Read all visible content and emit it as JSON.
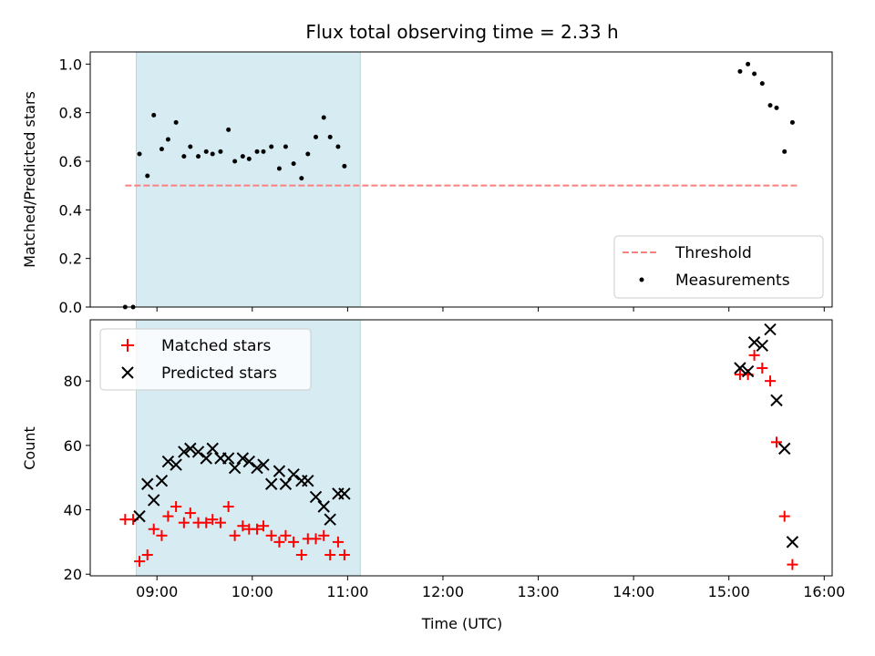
{
  "colors": {
    "shade": "#add8e6",
    "threshold": "#ff7f7f",
    "matched": "#ff0000",
    "predicted": "#000000",
    "measurement": "#000000"
  },
  "chart_data": [
    {
      "type": "scatter",
      "title": "Flux total observing time = 2.33 h",
      "xlabel": "",
      "ylabel": "Matched/Predicted stars",
      "xlim": [
        "08:18",
        "16:05"
      ],
      "ylim": [
        0,
        1.05
      ],
      "yticks": [
        0.0,
        0.2,
        0.4,
        0.6,
        0.8,
        1.0
      ],
      "ytick_labels": [
        "0.0",
        "0.2",
        "0.4",
        "0.6",
        "0.8",
        "1.0"
      ],
      "xticks": [
        "09:00",
        "10:00",
        "11:00",
        "12:00",
        "13:00",
        "14:00",
        "15:00",
        "16:00"
      ],
      "shaded_span": [
        "08:47",
        "11:08"
      ],
      "legend_position": "lower-right",
      "series": [
        {
          "name": "Threshold",
          "kind": "dashed-line",
          "points": [
            [
              "08:40",
              0.5
            ],
            [
              "15:44",
              0.5
            ]
          ]
        },
        {
          "name": "Measurements",
          "kind": "points",
          "points": [
            [
              "08:40",
              0.0
            ],
            [
              "08:45",
              0.0
            ],
            [
              "08:49",
              0.63
            ],
            [
              "08:54",
              0.54
            ],
            [
              "08:58",
              0.79
            ],
            [
              "09:03",
              0.65
            ],
            [
              "09:07",
              0.69
            ],
            [
              "09:12",
              0.76
            ],
            [
              "09:17",
              0.62
            ],
            [
              "09:21",
              0.66
            ],
            [
              "09:26",
              0.62
            ],
            [
              "09:31",
              0.64
            ],
            [
              "09:35",
              0.63
            ],
            [
              "09:40",
              0.64
            ],
            [
              "09:45",
              0.73
            ],
            [
              "09:49",
              0.6
            ],
            [
              "09:54",
              0.62
            ],
            [
              "09:58",
              0.61
            ],
            [
              "10:03",
              0.64
            ],
            [
              "10:07",
              0.64
            ],
            [
              "10:12",
              0.66
            ],
            [
              "10:17",
              0.57
            ],
            [
              "10:21",
              0.66
            ],
            [
              "10:26",
              0.59
            ],
            [
              "10:31",
              0.53
            ],
            [
              "10:35",
              0.63
            ],
            [
              "10:40",
              0.7
            ],
            [
              "10:45",
              0.78
            ],
            [
              "10:49",
              0.7
            ],
            [
              "10:54",
              0.66
            ],
            [
              "10:58",
              0.58
            ],
            [
              "15:07",
              0.97
            ],
            [
              "15:12",
              1.0
            ],
            [
              "15:16",
              0.96
            ],
            [
              "15:21",
              0.92
            ],
            [
              "15:26",
              0.83
            ],
            [
              "15:30",
              0.82
            ],
            [
              "15:35",
              0.64
            ],
            [
              "15:40",
              0.76
            ]
          ]
        }
      ]
    },
    {
      "type": "scatter",
      "title": "",
      "xlabel": "Time (UTC)",
      "ylabel": "Count",
      "xlim": [
        "08:18",
        "16:05"
      ],
      "ylim": [
        19.5,
        99
      ],
      "yticks": [
        20,
        40,
        60,
        80
      ],
      "ytick_labels": [
        "20",
        "40",
        "60",
        "80"
      ],
      "xticks": [
        "09:00",
        "10:00",
        "11:00",
        "12:00",
        "13:00",
        "14:00",
        "15:00",
        "16:00"
      ],
      "xtick_labels": [
        "09:00",
        "10:00",
        "11:00",
        "12:00",
        "13:00",
        "14:00",
        "15:00",
        "16:00"
      ],
      "shaded_span": [
        "08:47",
        "11:08"
      ],
      "legend_position": "upper-left",
      "series": [
        {
          "name": "Matched stars",
          "kind": "plus",
          "points": [
            [
              "08:40",
              37
            ],
            [
              "08:45",
              37
            ],
            [
              "08:49",
              24
            ],
            [
              "08:54",
              26
            ],
            [
              "08:58",
              34
            ],
            [
              "09:03",
              32
            ],
            [
              "09:07",
              38
            ],
            [
              "09:12",
              41
            ],
            [
              "09:17",
              36
            ],
            [
              "09:21",
              39
            ],
            [
              "09:26",
              36
            ],
            [
              "09:31",
              36
            ],
            [
              "09:35",
              37
            ],
            [
              "09:40",
              36
            ],
            [
              "09:45",
              41
            ],
            [
              "09:49",
              32
            ],
            [
              "09:54",
              35
            ],
            [
              "09:58",
              34
            ],
            [
              "10:03",
              34
            ],
            [
              "10:07",
              35
            ],
            [
              "10:12",
              32
            ],
            [
              "10:17",
              30
            ],
            [
              "10:21",
              32
            ],
            [
              "10:26",
              30
            ],
            [
              "10:31",
              26
            ],
            [
              "10:35",
              31
            ],
            [
              "10:40",
              31
            ],
            [
              "10:45",
              32
            ],
            [
              "10:49",
              26
            ],
            [
              "10:54",
              30
            ],
            [
              "10:58",
              26
            ],
            [
              "15:07",
              82
            ],
            [
              "15:12",
              82
            ],
            [
              "15:16",
              88
            ],
            [
              "15:21",
              84
            ],
            [
              "15:26",
              80
            ],
            [
              "15:30",
              61
            ],
            [
              "15:35",
              38
            ],
            [
              "15:40",
              23
            ]
          ]
        },
        {
          "name": "Predicted stars",
          "kind": "x",
          "points": [
            [
              "08:49",
              38
            ],
            [
              "08:54",
              48
            ],
            [
              "08:58",
              43
            ],
            [
              "09:03",
              49
            ],
            [
              "09:07",
              55
            ],
            [
              "09:12",
              54
            ],
            [
              "09:17",
              58
            ],
            [
              "09:21",
              59
            ],
            [
              "09:26",
              58
            ],
            [
              "09:31",
              56
            ],
            [
              "09:35",
              59
            ],
            [
              "09:40",
              56
            ],
            [
              "09:45",
              56
            ],
            [
              "09:49",
              53
            ],
            [
              "09:54",
              56
            ],
            [
              "09:58",
              55
            ],
            [
              "10:03",
              53
            ],
            [
              "10:07",
              54
            ],
            [
              "10:12",
              48
            ],
            [
              "10:17",
              52
            ],
            [
              "10:21",
              48
            ],
            [
              "10:26",
              51
            ],
            [
              "10:31",
              49
            ],
            [
              "10:35",
              49
            ],
            [
              "10:40",
              44
            ],
            [
              "10:45",
              41
            ],
            [
              "10:49",
              37
            ],
            [
              "10:54",
              45
            ],
            [
              "10:58",
              45
            ],
            [
              "15:07",
              84
            ],
            [
              "15:12",
              83
            ],
            [
              "15:16",
              92
            ],
            [
              "15:21",
              91
            ],
            [
              "15:26",
              96
            ],
            [
              "15:30",
              74
            ],
            [
              "15:35",
              59
            ],
            [
              "15:40",
              30
            ]
          ]
        }
      ]
    }
  ]
}
